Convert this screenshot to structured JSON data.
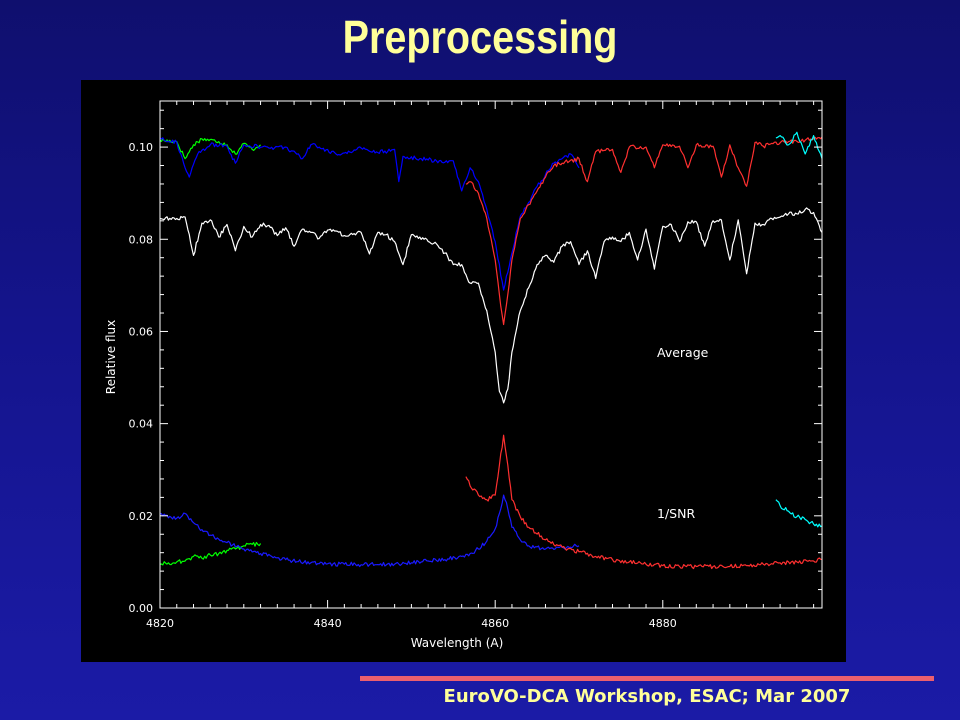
{
  "slide": {
    "title": "Preprocessing",
    "footer": "EuroVO-DCA Workshop, ESAC; Mar 2007",
    "footer_rule_color": "#ec5f6e",
    "title_color": "#ffff99"
  },
  "chart_data": {
    "type": "line",
    "title": "",
    "xlabel": "Wavelength (A)",
    "ylabel": "Relative flux",
    "xlim": [
      4820,
      4899
    ],
    "ylim": [
      0.0,
      0.11
    ],
    "xticks": [
      "4820",
      "4840",
      "4860",
      "4880"
    ],
    "xtick_values": [
      4820,
      4840,
      4860,
      4880
    ],
    "yticks": [
      "0.00",
      "0.02",
      "0.04",
      "0.06",
      "0.08",
      "0.10"
    ],
    "ytick_values": [
      0.0,
      0.02,
      0.04,
      0.06,
      0.08,
      0.1
    ],
    "annotations": [
      {
        "text": "Average",
        "x": 4873,
        "y": 0.0545
      },
      {
        "text": "1/SNR",
        "x": 4873,
        "y": 0.0195
      }
    ],
    "series": [
      {
        "color": "#00ff00",
        "x": [
          4820,
          4822,
          4823,
          4824,
          4825,
          4827,
          4828,
          4829,
          4830,
          4831,
          4832
        ],
        "y": [
          0.1015,
          0.1012,
          0.0975,
          0.1005,
          0.1018,
          0.1012,
          0.1005,
          0.0985,
          0.1008,
          0.0995,
          0.1005
        ]
      },
      {
        "color": "#0000ff",
        "x": [
          4820,
          4822,
          4823,
          4823.5,
          4824.5,
          4826,
          4828,
          4829,
          4830,
          4833,
          4835,
          4837,
          4838,
          4839,
          4841,
          4843,
          4844,
          4846,
          4848,
          4848.5,
          4849,
          4851,
          4853,
          4855,
          4856,
          4857,
          4858,
          4859,
          4860,
          4861,
          4862,
          4863,
          4864,
          4865,
          4866,
          4867,
          4868,
          4869,
          4870
        ],
        "y": [
          0.102,
          0.101,
          0.0955,
          0.0935,
          0.0985,
          0.1005,
          0.1002,
          0.0965,
          0.1005,
          0.0998,
          0.1,
          0.0975,
          0.1005,
          0.1,
          0.0985,
          0.099,
          0.0998,
          0.0988,
          0.0995,
          0.0925,
          0.098,
          0.0975,
          0.097,
          0.097,
          0.0905,
          0.0955,
          0.0925,
          0.0865,
          0.0795,
          0.069,
          0.077,
          0.085,
          0.088,
          0.0915,
          0.094,
          0.0965,
          0.0975,
          0.0985,
          0.0955
        ]
      },
      {
        "color": "#ff3030",
        "x": [
          4856.5,
          4857,
          4858,
          4859,
          4860,
          4860.5,
          4861,
          4861.5,
          4862,
          4863,
          4864,
          4865,
          4866,
          4867,
          4868,
          4870,
          4871,
          4872,
          4874,
          4875,
          4876,
          4878,
          4879,
          4880,
          4882,
          4883,
          4884,
          4886,
          4887,
          4888,
          4889,
          4890,
          4891,
          4892,
          4893,
          4895,
          4897,
          4898,
          4899
        ],
        "y": [
          0.092,
          0.0925,
          0.09,
          0.0845,
          0.0755,
          0.068,
          0.0615,
          0.068,
          0.0755,
          0.0845,
          0.0875,
          0.0905,
          0.0935,
          0.096,
          0.0965,
          0.0975,
          0.0925,
          0.099,
          0.0995,
          0.0945,
          0.1,
          0.1,
          0.0955,
          0.1005,
          0.1002,
          0.0955,
          0.1005,
          0.1002,
          0.0935,
          0.1005,
          0.0955,
          0.0915,
          0.101,
          0.1002,
          0.1008,
          0.1012,
          0.1015,
          0.1018,
          0.1022
        ]
      },
      {
        "color": "#00ffff",
        "x": [
          4893.5,
          4894,
          4895,
          4896,
          4897,
          4898,
          4899
        ],
        "y": [
          0.102,
          0.1025,
          0.1005,
          0.1032,
          0.0985,
          0.1025,
          0.0975
        ]
      },
      {
        "color": "#ffffff",
        "x": [
          4820,
          4822,
          4823,
          4824,
          4825,
          4826,
          4827,
          4828,
          4829,
          4830,
          4831,
          4832,
          4833,
          4834,
          4835,
          4836,
          4837,
          4838,
          4839,
          4840,
          4841,
          4842,
          4844,
          4845,
          4846,
          4847,
          4848,
          4849,
          4850,
          4851,
          4852,
          4853,
          4854,
          4855,
          4856,
          4857,
          4858,
          4859,
          4860,
          4860.5,
          4861,
          4861.5,
          4862,
          4863,
          4864,
          4865,
          4866,
          4867,
          4868,
          4869,
          4870,
          4871,
          4872,
          4873,
          4874,
          4875,
          4876,
          4877,
          4878,
          4879,
          4880,
          4881,
          4882,
          4883,
          4884,
          4885,
          4886,
          4887,
          4888,
          4889,
          4890,
          4891,
          4892,
          4893,
          4894,
          4895,
          4896,
          4897,
          4898,
          4899
        ],
        "y": [
          0.0845,
          0.0845,
          0.0848,
          0.0765,
          0.0835,
          0.0842,
          0.0805,
          0.0832,
          0.0775,
          0.0828,
          0.0805,
          0.0832,
          0.083,
          0.0808,
          0.0825,
          0.0785,
          0.0822,
          0.0815,
          0.0802,
          0.082,
          0.0818,
          0.0808,
          0.0815,
          0.0768,
          0.0815,
          0.081,
          0.0795,
          0.0745,
          0.081,
          0.0805,
          0.0795,
          0.079,
          0.077,
          0.0745,
          0.0745,
          0.0705,
          0.0705,
          0.0645,
          0.0555,
          0.047,
          0.0445,
          0.0475,
          0.0555,
          0.0645,
          0.0695,
          0.0745,
          0.0765,
          0.075,
          0.0785,
          0.0795,
          0.0745,
          0.0775,
          0.0715,
          0.0795,
          0.0805,
          0.0795,
          0.0815,
          0.0755,
          0.0822,
          0.0735,
          0.0828,
          0.0832,
          0.0795,
          0.0838,
          0.0838,
          0.0785,
          0.084,
          0.0842,
          0.0755,
          0.0842,
          0.0725,
          0.0835,
          0.0832,
          0.0845,
          0.0848,
          0.0855,
          0.0855,
          0.0865,
          0.0858,
          0.0815
        ]
      },
      {
        "color": "#00ff00",
        "x": [
          4820,
          4821,
          4822,
          4823,
          4824,
          4825,
          4826,
          4827,
          4828,
          4829,
          4830,
          4831,
          4832
        ],
        "y": [
          0.0095,
          0.0098,
          0.01,
          0.0102,
          0.0112,
          0.0108,
          0.0115,
          0.0118,
          0.0125,
          0.0128,
          0.0135,
          0.0138,
          0.014
        ]
      },
      {
        "color": "#1a1aff",
        "x": [
          4820,
          4822,
          4823,
          4824,
          4825,
          4826,
          4828,
          4830,
          4832,
          4835,
          4838,
          4840,
          4842,
          4845,
          4848,
          4850,
          4852,
          4854,
          4856,
          4857,
          4858,
          4859,
          4860,
          4860.5,
          4861,
          4861.5,
          4862,
          4863,
          4864,
          4866,
          4868,
          4870
        ],
        "y": [
          0.0205,
          0.0195,
          0.0205,
          0.0185,
          0.017,
          0.0158,
          0.0142,
          0.0128,
          0.0118,
          0.0105,
          0.0098,
          0.0096,
          0.0095,
          0.0094,
          0.0095,
          0.0098,
          0.0102,
          0.0105,
          0.0112,
          0.0118,
          0.0128,
          0.0145,
          0.0172,
          0.0205,
          0.0245,
          0.0215,
          0.0175,
          0.0148,
          0.0135,
          0.0128,
          0.0132,
          0.0135
        ]
      },
      {
        "color": "#ff3030",
        "x": [
          4856.5,
          4857,
          4858,
          4859,
          4860,
          4860.5,
          4861,
          4861.5,
          4862,
          4863,
          4864,
          4866,
          4868,
          4870,
          4872,
          4874,
          4876,
          4878,
          4880,
          4882,
          4884,
          4886,
          4888,
          4890,
          4892,
          4894,
          4896,
          4898,
          4899
        ],
        "y": [
          0.0285,
          0.0265,
          0.0245,
          0.0235,
          0.0245,
          0.031,
          0.0375,
          0.031,
          0.0235,
          0.0198,
          0.0175,
          0.0148,
          0.0132,
          0.0122,
          0.0112,
          0.0105,
          0.01,
          0.0095,
          0.0092,
          0.009,
          0.009,
          0.009,
          0.009,
          0.0092,
          0.0095,
          0.0098,
          0.01,
          0.0102,
          0.0105
        ]
      },
      {
        "color": "#00ffff",
        "x": [
          4893.5,
          4894,
          4895,
          4896,
          4897,
          4898,
          4899
        ],
        "y": [
          0.0235,
          0.0222,
          0.021,
          0.0198,
          0.0192,
          0.0182,
          0.0178
        ]
      }
    ]
  }
}
